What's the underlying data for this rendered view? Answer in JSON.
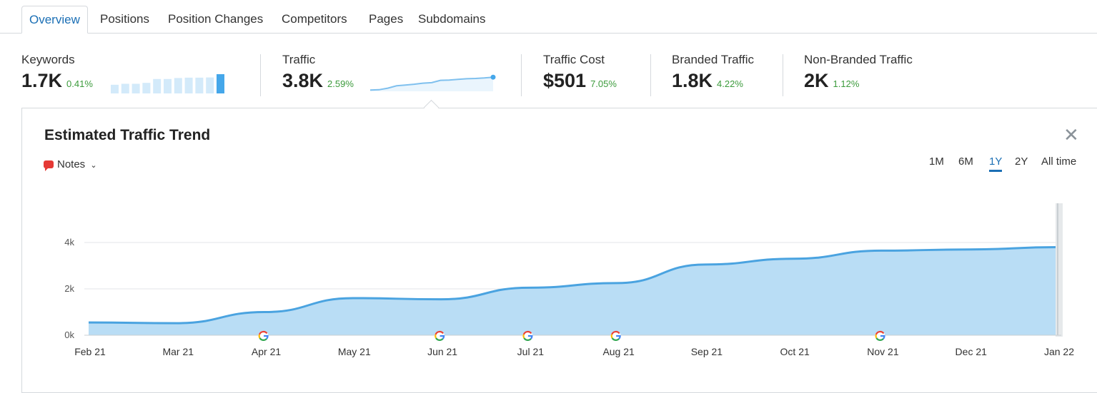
{
  "tabs": [
    "Overview",
    "Positions",
    "Position Changes",
    "Competitors",
    "Pages",
    "Subdomains"
  ],
  "metrics": [
    {
      "label": "Keywords",
      "value": "1.7K",
      "change": "0.41%"
    },
    {
      "label": "Traffic",
      "value": "3.8K",
      "change": "2.59%"
    },
    {
      "label": "Traffic Cost",
      "value": "$501",
      "change": "7.05%"
    },
    {
      "label": "Branded Traffic",
      "value": "1.8K",
      "change": "4.22%"
    },
    {
      "label": "Non-Branded Traffic",
      "value": "2K",
      "change": "1.12%"
    }
  ],
  "panel": {
    "title": "Estimated Traffic Trend",
    "notes_label": "Notes",
    "ranges": [
      "1M",
      "6M",
      "1Y",
      "2Y",
      "All time"
    ],
    "active_range": "1Y"
  },
  "colors": {
    "accent": "#1b6fb5",
    "area_fill": "#b9ddf5",
    "area_line": "#4aa3e0",
    "positive_change": "#3c9b3c"
  },
  "chart_data": {
    "type": "area",
    "x": [
      "Feb 21",
      "Mar 21",
      "Apr 21",
      "May 21",
      "Jun 21",
      "Jul 21",
      "Aug 21",
      "Sep 21",
      "Oct 21",
      "Nov 21",
      "Dec 21",
      "Jan 22"
    ],
    "y_ticks": [
      "0k",
      "2k",
      "4k"
    ],
    "ylim": [
      0,
      4000
    ],
    "values": [
      550,
      520,
      1000,
      1600,
      1550,
      2050,
      2250,
      3050,
      3300,
      3650,
      3700,
      3800
    ],
    "google_update_markers": [
      "Apr 21",
      "Jun 21",
      "Jul 21",
      "Aug 21",
      "Nov 21"
    ],
    "grid": true
  },
  "mini_charts": {
    "keywords_bars": [
      0.45,
      0.5,
      0.5,
      0.55,
      0.75,
      0.75,
      0.8,
      0.82,
      0.82,
      0.83,
      1.0
    ],
    "traffic_line": [
      0.08,
      0.1,
      0.2,
      0.35,
      0.4,
      0.45,
      0.52,
      0.55,
      0.7,
      0.72,
      0.76,
      0.8,
      0.82,
      0.85,
      0.9
    ]
  }
}
